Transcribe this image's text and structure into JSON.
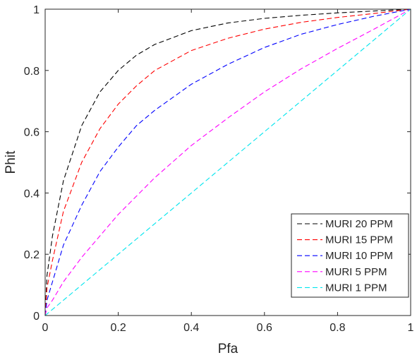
{
  "chart_data": {
    "type": "line",
    "xlabel": "Pfa",
    "ylabel": "Phit",
    "xlim": [
      0,
      1
    ],
    "ylim": [
      0,
      1
    ],
    "xticks": [
      0,
      0.2,
      0.4,
      0.6,
      0.8,
      1
    ],
    "yticks": [
      0,
      0.2,
      0.4,
      0.6,
      0.8,
      1
    ],
    "xtick_labels": [
      "0",
      "0.2",
      "0.4",
      "0.6",
      "0.8",
      "1"
    ],
    "ytick_labels": [
      "0",
      "0.2",
      "0.4",
      "0.6",
      "0.8",
      "1"
    ],
    "grid": false,
    "legend_position": "bottom-right",
    "x": [
      0,
      0.005,
      0.02,
      0.05,
      0.1,
      0.15,
      0.2,
      0.25,
      0.3,
      0.4,
      0.5,
      0.6,
      0.7,
      0.8,
      0.9,
      1.0
    ],
    "series": [
      {
        "name": "MURI 20 PPM",
        "color": "#000000",
        "values": [
          0,
          0.13,
          0.26,
          0.44,
          0.62,
          0.73,
          0.8,
          0.85,
          0.885,
          0.93,
          0.955,
          0.97,
          0.98,
          0.988,
          0.994,
          1.0
        ]
      },
      {
        "name": "MURI 15 PPM",
        "color": "#ff0000",
        "values": [
          0,
          0.09,
          0.18,
          0.34,
          0.5,
          0.61,
          0.69,
          0.75,
          0.8,
          0.865,
          0.905,
          0.935,
          0.957,
          0.973,
          0.986,
          1.0
        ]
      },
      {
        "name": "MURI 10 PPM",
        "color": "#0000ff",
        "values": [
          0,
          0.05,
          0.11,
          0.23,
          0.36,
          0.47,
          0.55,
          0.62,
          0.67,
          0.755,
          0.82,
          0.875,
          0.918,
          0.95,
          0.977,
          1.0
        ]
      },
      {
        "name": "MURI 5 PPM",
        "color": "#ff00ff",
        "values": [
          0,
          0.025,
          0.05,
          0.11,
          0.19,
          0.26,
          0.33,
          0.39,
          0.45,
          0.555,
          0.645,
          0.73,
          0.805,
          0.872,
          0.935,
          1.0
        ]
      },
      {
        "name": "MURI 1 PPM",
        "color": "#00e5ee",
        "values": [
          0,
          0.005,
          0.02,
          0.05,
          0.1,
          0.15,
          0.2,
          0.25,
          0.3,
          0.4,
          0.5,
          0.6,
          0.7,
          0.8,
          0.9,
          1.0
        ]
      }
    ]
  }
}
